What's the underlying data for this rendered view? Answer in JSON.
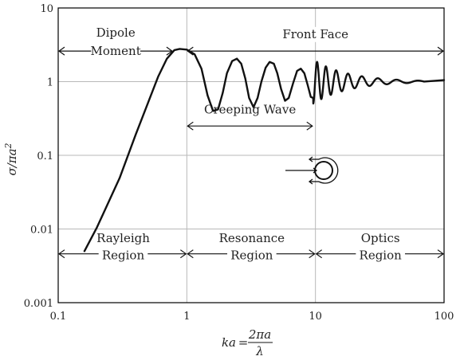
{
  "chart_data": {
    "type": "line",
    "x_scale": "log",
    "y_scale": "log",
    "xlim": [
      0.1,
      100
    ],
    "ylim": [
      0.001,
      10
    ],
    "grid": true,
    "xlabel": {
      "lhs": "ka",
      "eq": "=",
      "num": "2πa",
      "den": "λ"
    },
    "ylabel": {
      "base": "σ/πa",
      "sup": "2"
    },
    "x_ticks": [
      {
        "value": 0.1,
        "label": "0.1"
      },
      {
        "value": 1,
        "label": "1"
      },
      {
        "value": 10,
        "label": "10"
      },
      {
        "value": 100,
        "label": "100"
      }
    ],
    "y_ticks": [
      {
        "value": 0.001,
        "label": "0.001"
      },
      {
        "value": 0.01,
        "label": "0.01"
      },
      {
        "value": 0.1,
        "label": "0.1"
      },
      {
        "value": 1,
        "label": "1"
      },
      {
        "value": 10,
        "label": "10"
      }
    ],
    "series": [
      {
        "x": [
          0.16,
          0.2,
          0.3,
          0.4,
          0.5,
          0.6,
          0.7,
          0.8,
          0.88,
          1.0,
          1.15,
          1.3,
          1.45,
          1.6,
          1.75,
          1.9,
          2.05,
          2.25,
          2.45,
          2.65,
          2.85,
          3.05,
          3.3,
          3.55,
          3.8,
          4.1,
          4.4,
          4.75,
          5.05,
          5.4,
          5.8,
          6.2,
          6.7,
          7.2,
          7.7,
          8.2,
          8.7,
          9.2,
          9.6
        ],
        "y": [
          0.005,
          0.0105,
          0.049,
          0.19,
          0.52,
          1.18,
          2.05,
          2.68,
          2.78,
          2.72,
          2.35,
          1.5,
          0.65,
          0.4,
          0.42,
          0.7,
          1.3,
          1.9,
          2.05,
          1.75,
          1.1,
          0.6,
          0.45,
          0.6,
          1.0,
          1.55,
          1.85,
          1.75,
          1.3,
          0.8,
          0.55,
          0.6,
          0.95,
          1.4,
          1.5,
          1.3,
          0.9,
          0.62,
          0.6
        ]
      }
    ],
    "damped_oscillation": {
      "x_start": 9.6,
      "x_end": 70,
      "y_center": 1.0,
      "amp_start": 0.5,
      "amp_end": 0.02,
      "period_start": 1.0,
      "period_end": 3.2,
      "x_flat_end": 100,
      "y_flat": 1.05
    },
    "annotations": [
      {
        "lines": [
          "Dipole",
          "Moment"
        ],
        "x_from": 0.1,
        "x_to": 0.78,
        "y": 2.6,
        "text_x": 0.28,
        "text_y": [
          4.1,
          2.3
        ]
      },
      {
        "lines": [
          "Front Face"
        ],
        "x_from": 1.0,
        "x_to": 100,
        "y": 2.6,
        "text_x": 10,
        "text_y": [
          3.9
        ]
      },
      {
        "lines": [
          "Creeping Wave"
        ],
        "x_from": 1.0,
        "x_to": 9.6,
        "y": 0.25,
        "text_x": 3.1,
        "text_y": [
          0.37
        ]
      },
      {
        "lines": [
          "Rayleigh",
          "Region"
        ],
        "x_from": 0.1,
        "x_to": 1.0,
        "y": 0.0046,
        "text_x": 0.32,
        "text_y": [
          0.0066,
          0.0039
        ]
      },
      {
        "lines": [
          "Resonance",
          "Region"
        ],
        "x_from": 1.0,
        "x_to": 10,
        "y": 0.0046,
        "text_x": 3.2,
        "text_y": [
          0.0066,
          0.0039
        ]
      },
      {
        "lines": [
          "Optics",
          "Region"
        ],
        "x_from": 10,
        "x_to": 100,
        "y": 0.0046,
        "text_x": 32,
        "text_y": [
          0.0066,
          0.0039
        ]
      }
    ],
    "icon": "sphere-creeping-wave-icon"
  }
}
